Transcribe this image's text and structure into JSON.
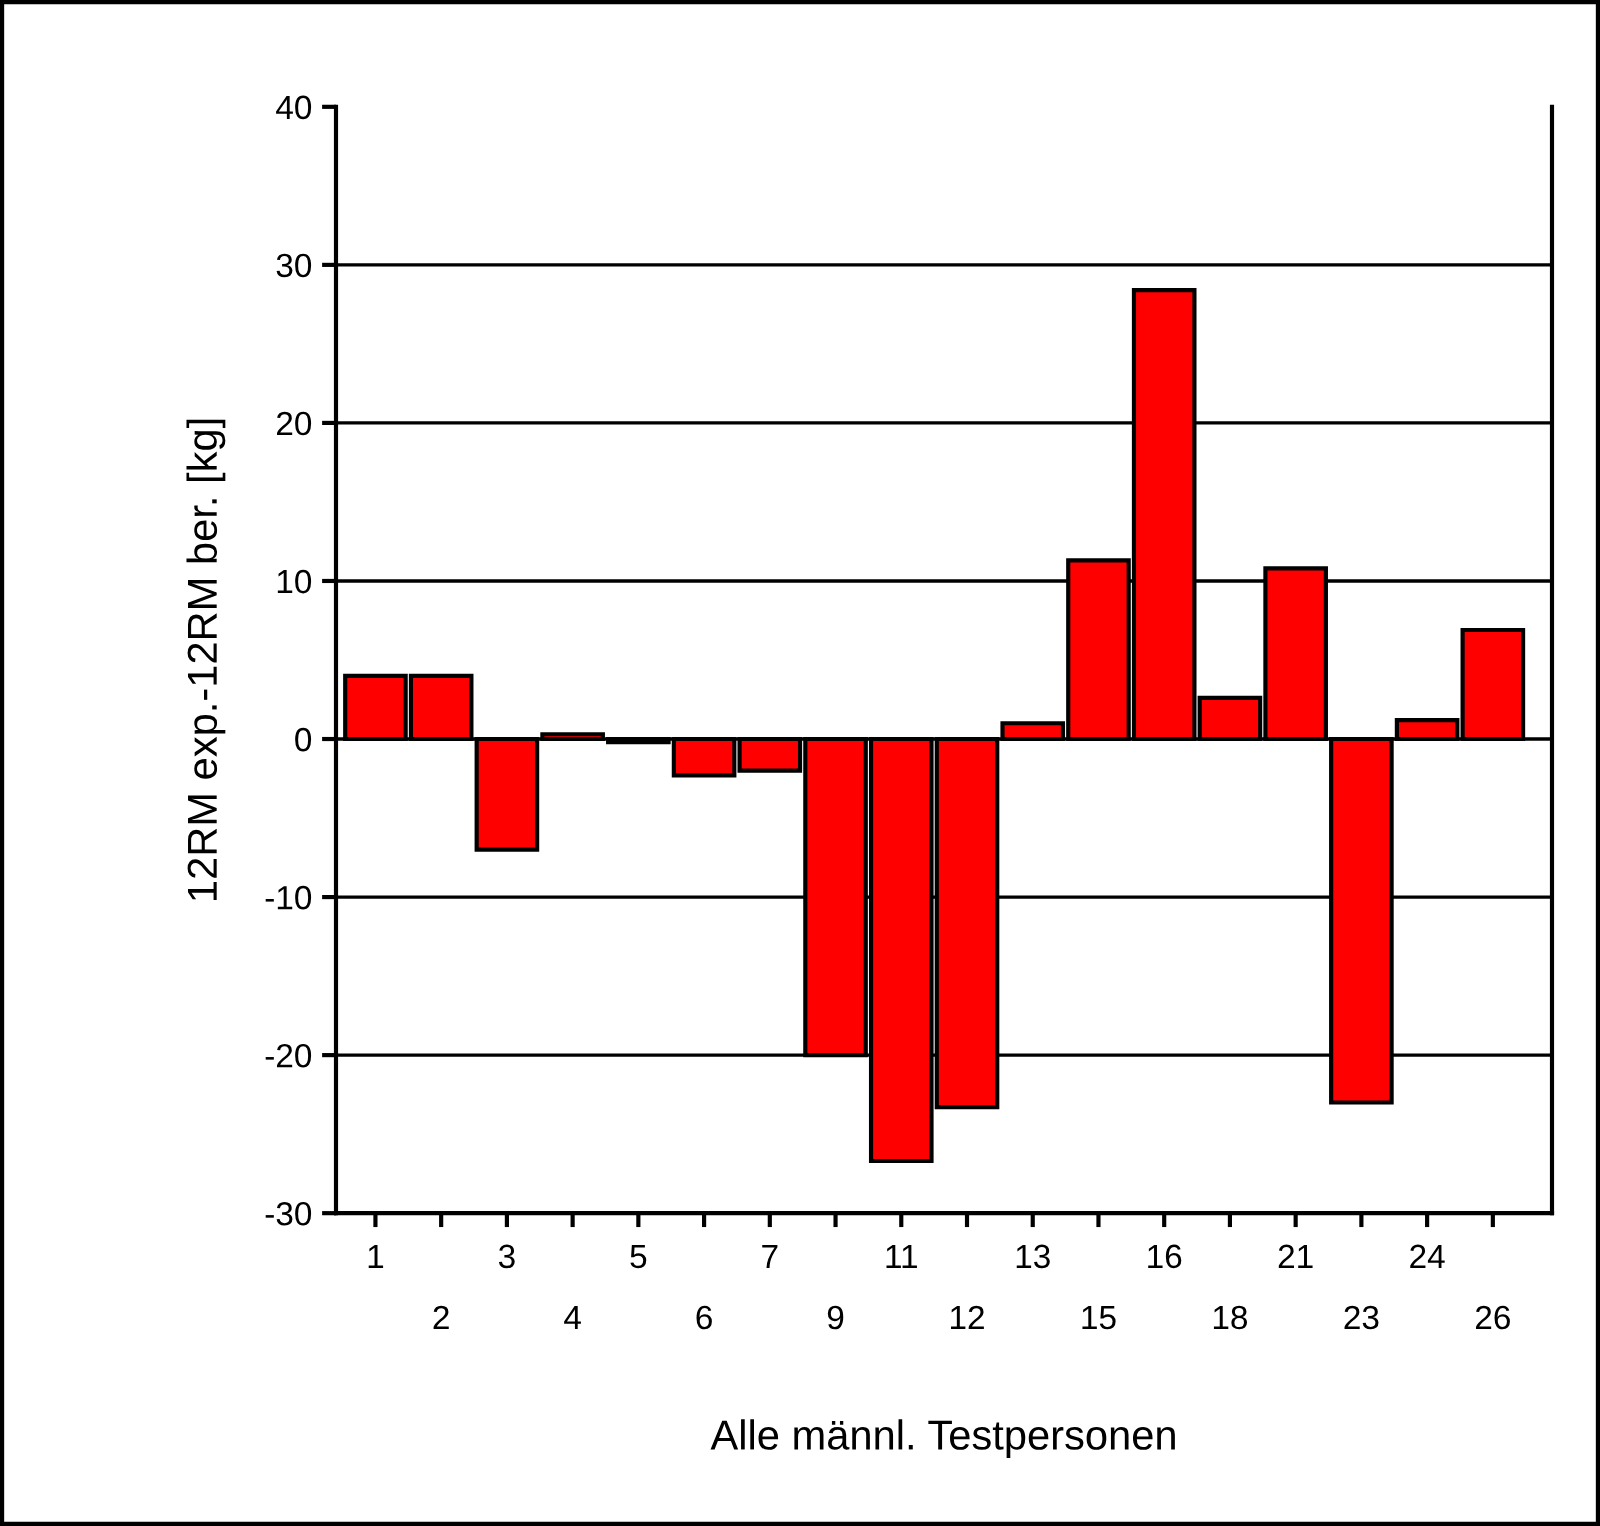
{
  "chart_data": {
    "type": "bar",
    "xlabel": "Alle männl. Testpersonen",
    "ylabel": "12RM exp.-12RM ber. [kg]",
    "categories": [
      "1",
      "2",
      "3",
      "4",
      "5",
      "6",
      "7",
      "9",
      "11",
      "12",
      "13",
      "15",
      "16",
      "18",
      "21",
      "23",
      "24",
      "26"
    ],
    "values": [
      4,
      4,
      -7,
      0.3,
      -0.2,
      -2.3,
      -2,
      -20,
      -26.7,
      -23.3,
      1,
      11.3,
      28.4,
      2.6,
      10.8,
      -23,
      1.2,
      6.9
    ],
    "color": "#ff0000",
    "ylim": [
      -30,
      40
    ],
    "yticks": [
      -30,
      -20,
      -10,
      0,
      10,
      20,
      30,
      40
    ],
    "grid": "y",
    "legend": false
  }
}
